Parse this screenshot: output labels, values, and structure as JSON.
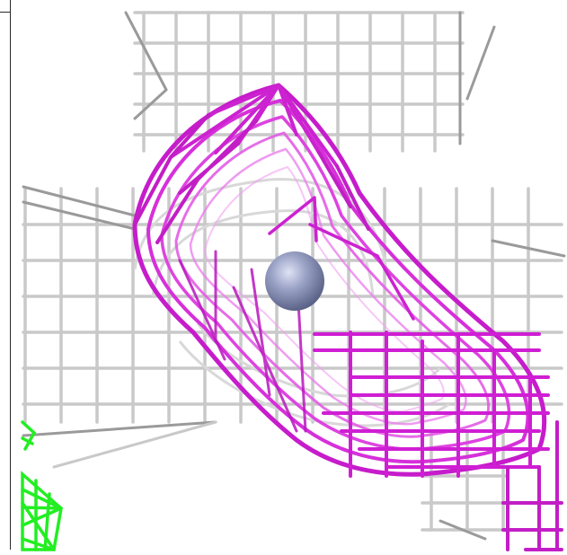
{
  "scene": {
    "background": "#ffffff",
    "colors": {
      "grey_mesh": "#c9c9c9",
      "grey_mesh_dark": "#9a9a9a",
      "magenta_mesh": "#d21fd6",
      "magenta_mesh_dark": "#8d0a8f",
      "green_mesh": "#22ee22",
      "atom_sphere": "#8b93b8"
    },
    "objects": [
      "grey-density-mesh",
      "magenta-density-mesh",
      "green-density-mesh",
      "atom-sphere"
    ]
  }
}
